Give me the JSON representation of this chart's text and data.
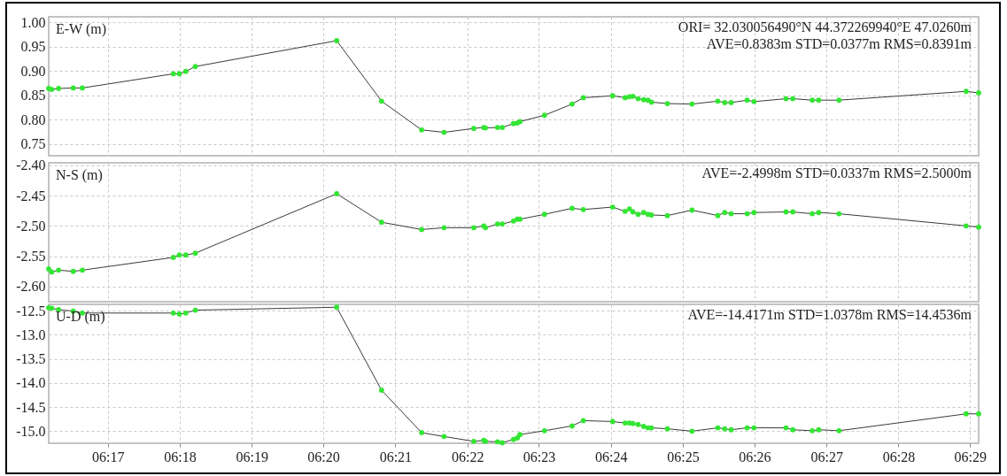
{
  "chart_data": [
    {
      "type": "line",
      "ylabel": "E-W (m)",
      "annotations": [
        "ORI= 32.030056490°N   44.372269940°E 47.0260m",
        "AVE=0.8383m STD=0.0377m RMS=0.8391m"
      ],
      "x": [
        6.2696,
        6.2703,
        6.2719,
        6.2753,
        6.2774,
        6.2985,
        6.2999,
        6.3014,
        6.3036,
        6.3364,
        6.3468,
        6.3561,
        6.3613,
        6.3682,
        6.3705,
        6.3709,
        6.3737,
        6.3748,
        6.3774,
        6.3783,
        6.3789,
        6.3846,
        6.391,
        6.3936,
        6.4004,
        6.4033,
        6.4043,
        6.4051,
        6.4063,
        6.4076,
        6.4086,
        6.4094,
        6.4131,
        6.4188,
        6.4248,
        6.4264,
        6.4279,
        6.4316,
        6.4332,
        6.4406,
        6.4422,
        6.4467,
        6.4482,
        6.4529,
        6.4824,
        6.4853
      ],
      "series": [
        {
          "color": "#3a3a3a",
          "values": [
            0.864,
            0.862,
            0.864,
            0.865,
            0.865,
            0.894,
            0.894,
            0.899,
            0.909,
            0.962,
            0.838,
            0.779,
            0.774,
            0.782,
            0.784,
            0.783,
            0.784,
            0.784,
            0.792,
            0.793,
            0.796,
            0.809,
            0.832,
            0.845,
            0.849,
            0.845,
            0.847,
            0.848,
            0.843,
            0.841,
            0.84,
            0.836,
            0.833,
            0.832,
            0.838,
            0.835,
            0.835,
            0.84,
            0.837,
            0.843,
            0.843,
            0.84,
            0.84,
            0.84,
            0.858,
            0.855
          ]
        }
      ],
      "xlim": [
        6.2696,
        6.4853
      ],
      "xticks": [
        {
          "value": 6.2833,
          "label": null
        },
        {
          "value": 6.3,
          "label": null
        },
        {
          "value": 6.3167,
          "label": null
        },
        {
          "value": 6.3333,
          "label": null
        },
        {
          "value": 6.35,
          "label": null
        },
        {
          "value": 6.3667,
          "label": null
        },
        {
          "value": 6.3833,
          "label": null
        },
        {
          "value": 6.4,
          "label": null
        },
        {
          "value": 6.4167,
          "label": null
        },
        {
          "value": 6.4333,
          "label": null
        },
        {
          "value": 6.45,
          "label": null
        },
        {
          "value": 6.4667,
          "label": null
        },
        {
          "value": 6.4833,
          "label": null
        }
      ],
      "ylim": [
        0.726,
        1.011
      ],
      "yticks": [
        0.75,
        {
          "value": 0.8,
          "label": "0.80"
        },
        0.85,
        {
          "value": 0.9,
          "label": "0.90"
        },
        0.95,
        {
          "value": 1,
          "label": "1.00"
        }
      ],
      "grid": true,
      "marker": "circle",
      "line_style": "solid",
      "tick_labels": "y"
    },
    {
      "type": "line",
      "ylabel": "N-S (m)",
      "annotations": [
        "AVE=-2.4998m STD=0.0337m RMS=2.5000m"
      ],
      "x": [
        6.2696,
        6.2703,
        6.2719,
        6.2753,
        6.2774,
        6.2985,
        6.2999,
        6.3014,
        6.3036,
        6.3364,
        6.3468,
        6.3561,
        6.3613,
        6.3682,
        6.3705,
        6.3709,
        6.3737,
        6.3748,
        6.3774,
        6.3783,
        6.3789,
        6.3846,
        6.391,
        6.3936,
        6.4004,
        6.4033,
        6.4043,
        6.4051,
        6.4063,
        6.4076,
        6.4086,
        6.4094,
        6.4131,
        6.4188,
        6.4248,
        6.4264,
        6.4279,
        6.4316,
        6.4332,
        6.4406,
        6.4422,
        6.4467,
        6.4482,
        6.4529,
        6.4824,
        6.4853
      ],
      "series": [
        {
          "color": "#3a3a3a",
          "values": [
            -2.571,
            -2.576,
            -2.573,
            -2.575,
            -2.573,
            -2.552,
            -2.548,
            -2.548,
            -2.545,
            -2.447,
            -2.494,
            -2.506,
            -2.503,
            -2.503,
            -2.5,
            -2.503,
            -2.497,
            -2.497,
            -2.492,
            -2.489,
            -2.489,
            -2.481,
            -2.471,
            -2.473,
            -2.469,
            -2.476,
            -2.472,
            -2.477,
            -2.481,
            -2.478,
            -2.481,
            -2.482,
            -2.483,
            -2.474,
            -2.483,
            -2.478,
            -2.48,
            -2.48,
            -2.478,
            -2.477,
            -2.477,
            -2.48,
            -2.478,
            -2.48,
            -2.5,
            -2.502
          ]
        }
      ],
      "xlim": [
        6.2696,
        6.4853
      ],
      "xticks": [
        {
          "value": 6.2833,
          "label": null
        },
        {
          "value": 6.3,
          "label": null
        },
        {
          "value": 6.3167,
          "label": null
        },
        {
          "value": 6.3333,
          "label": null
        },
        {
          "value": 6.35,
          "label": null
        },
        {
          "value": 6.3667,
          "label": null
        },
        {
          "value": 6.3833,
          "label": null
        },
        {
          "value": 6.4,
          "label": null
        },
        {
          "value": 6.4167,
          "label": null
        },
        {
          "value": 6.4333,
          "label": null
        },
        {
          "value": 6.45,
          "label": null
        },
        {
          "value": 6.4667,
          "label": null
        },
        {
          "value": 6.4833,
          "label": null
        }
      ],
      "ylim": [
        -2.625,
        -2.396
      ],
      "yticks": [
        {
          "value": -2.6,
          "label": "-2.60"
        },
        -2.55,
        {
          "value": -2.5,
          "label": "-2.50"
        },
        -2.45,
        {
          "value": -2.4,
          "label": "-2.40"
        }
      ],
      "grid": true,
      "marker": "circle",
      "line_style": "solid",
      "tick_labels": "y"
    },
    {
      "type": "line",
      "ylabel": "U-D (m)",
      "annotations": [
        "AVE=-14.4171m STD=1.0378m RMS=14.4536m"
      ],
      "x": [
        6.2696,
        6.2703,
        6.2719,
        6.2753,
        6.2774,
        6.2985,
        6.2999,
        6.3014,
        6.3036,
        6.3364,
        6.3468,
        6.3561,
        6.3613,
        6.3682,
        6.3705,
        6.3709,
        6.3737,
        6.3748,
        6.3774,
        6.3783,
        6.3789,
        6.3846,
        6.391,
        6.3936,
        6.4004,
        6.4033,
        6.4043,
        6.4051,
        6.4063,
        6.4076,
        6.4086,
        6.4094,
        6.4131,
        6.4188,
        6.4248,
        6.4264,
        6.4279,
        6.4316,
        6.4332,
        6.4406,
        6.4422,
        6.4467,
        6.4482,
        6.4529,
        6.4824,
        6.4853
      ],
      "series": [
        {
          "color": "#3a3a3a",
          "values": [
            -12.44,
            -12.45,
            -12.48,
            -12.51,
            -12.55,
            -12.55,
            -12.57,
            -12.55,
            -12.49,
            -12.43,
            -14.15,
            -15.03,
            -15.11,
            -15.21,
            -15.19,
            -15.21,
            -15.22,
            -15.24,
            -15.17,
            -15.14,
            -15.07,
            -14.99,
            -14.89,
            -14.78,
            -14.8,
            -14.83,
            -14.83,
            -14.84,
            -14.86,
            -14.9,
            -14.93,
            -14.93,
            -14.95,
            -15.0,
            -14.93,
            -14.95,
            -14.97,
            -14.93,
            -14.93,
            -14.93,
            -14.97,
            -14.99,
            -14.97,
            -14.99,
            -14.64,
            -14.64
          ]
        }
      ],
      "xlim": [
        6.2696,
        6.4853
      ],
      "xticks": [
        {
          "value": 6.2833,
          "label": "06:17"
        },
        {
          "value": 6.3,
          "label": "06:18"
        },
        {
          "value": 6.3167,
          "label": "06:19"
        },
        {
          "value": 6.3333,
          "label": "06:20"
        },
        {
          "value": 6.35,
          "label": "06:21"
        },
        {
          "value": 6.3667,
          "label": "06:22"
        },
        {
          "value": 6.3833,
          "label": "06:23"
        },
        {
          "value": 6.4,
          "label": "06:24"
        },
        {
          "value": 6.4167,
          "label": "06:25"
        },
        {
          "value": 6.4333,
          "label": "06:26"
        },
        {
          "value": 6.45,
          "label": "06:27"
        },
        {
          "value": 6.4667,
          "label": "06:28"
        },
        {
          "value": 6.4833,
          "label": "06:29"
        }
      ],
      "ylim": [
        -15.25,
        -12.37
      ],
      "yticks": [
        {
          "value": -15,
          "label": "-15.0"
        },
        -14.5,
        {
          "value": -14,
          "label": "-14.0"
        },
        -13.5,
        {
          "value": -13,
          "label": "-13.0"
        },
        -12.5
      ],
      "grid": true,
      "marker": "circle",
      "line_style": "solid"
    }
  ]
}
